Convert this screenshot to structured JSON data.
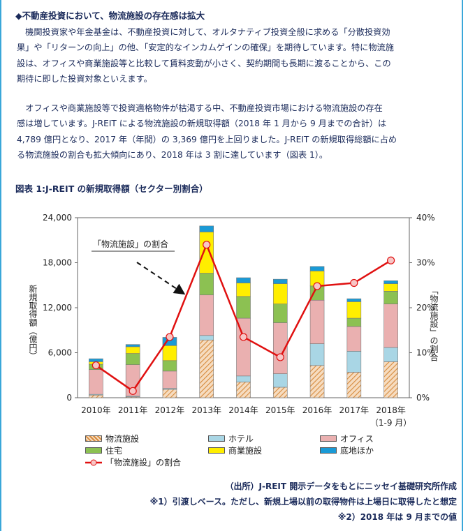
{
  "heading": "◆不動産投資において、物流施設の存在感は拡大",
  "paragraph1_lines": [
    "　機関投資家や年金基金は、不動産投資に対して、オルタナティブ投資全般に求める「分散投資効",
    "果」や「リターンの向上」の他、「安定的なインカムゲインの確保」を期待しています。特に物流施",
    "設は、オフィスや商業施設等と比較して賃料変動が小さく、契約期間も長期に渡ることから、この",
    "期待に即した投資対象といえます。"
  ],
  "paragraph2_lines": [
    "　オフィスや商業施設等で投資適格物件が枯渇する中、不動産投資市場における物流施設の存在",
    "感は増しています。J-REIT による物流施設の新規取得額（2018 年 1 月から 9 月までの合計）は",
    "4,789 億円となり、2017 年（年間）の 3,369 億円を上回りました。J-REIT の新規取得総額に占め",
    "る物流施設の割合も拡大傾向にあり、2018 年は 3 割に達しています（図表 1）。"
  ],
  "figure_title": "図表 1:J-REIT の新規取得額（セクター別割合）",
  "chart_data": {
    "type": "bar",
    "stacked": true,
    "categories": [
      "2010年",
      "2011年",
      "2012年",
      "2013年",
      "2014年",
      "2015年",
      "2016年",
      "2017年",
      "2018年"
    ],
    "category_sublabels": [
      "",
      "",
      "",
      "",
      "",
      "",
      "",
      "",
      "（1-9 月）"
    ],
    "left_ylabel": "新規取得額（億円）",
    "right_ylabel": "「物流施設」の割合",
    "left_ylim": [
      0,
      24000
    ],
    "left_ticks": [
      "0",
      "6,000",
      "12,000",
      "18,000",
      "24,000"
    ],
    "right_ylim": [
      0,
      40
    ],
    "right_ticks": [
      "0%",
      "10%",
      "20%",
      "30%",
      "40%"
    ],
    "series": [
      {
        "name": "物流施設",
        "color": "#e8a86a",
        "pattern": "hatch",
        "values": [
          350,
          100,
          1100,
          7700,
          2100,
          1400,
          4300,
          3400,
          4800
        ]
      },
      {
        "name": "ホテル",
        "color": "#a9d6e5",
        "values": [
          100,
          100,
          150,
          600,
          800,
          1800,
          2900,
          2800,
          1900
        ]
      },
      {
        "name": "オフィス",
        "color": "#eab0b0",
        "values": [
          3300,
          4200,
          2300,
          5400,
          7700,
          6800,
          5800,
          3300,
          5800
        ]
      },
      {
        "name": "住宅",
        "color": "#8cc152",
        "values": [
          700,
          1500,
          1400,
          2900,
          2900,
          2500,
          1900,
          1100,
          1700
        ]
      },
      {
        "name": "商業施設",
        "color": "#ffee00",
        "values": [
          350,
          900,
          2000,
          5500,
          1800,
          2700,
          2000,
          2200,
          1000
        ]
      },
      {
        "name": "底地ほか",
        "color": "#1a9ad6",
        "values": [
          400,
          300,
          1100,
          800,
          700,
          600,
          600,
          400,
          400
        ]
      }
    ],
    "ratio_series": {
      "name": "「物流施設」の割合",
      "color": "#e01010",
      "values": [
        7.2,
        1.5,
        13.5,
        34,
        13.5,
        9,
        24.8,
        25.5,
        30.5
      ]
    },
    "annotation": "「物流施設」の割合",
    "legend_position": "bottom",
    "grid": false
  },
  "source_lines": [
    "（出所）J-REIT 開示データをもとにニッセイ基礎研究所作成",
    "※1）引渡しベース。ただし、新規上場以前の取得物件は上場日に取得したと想定",
    "※2）2018 年は 9 月までの値"
  ]
}
